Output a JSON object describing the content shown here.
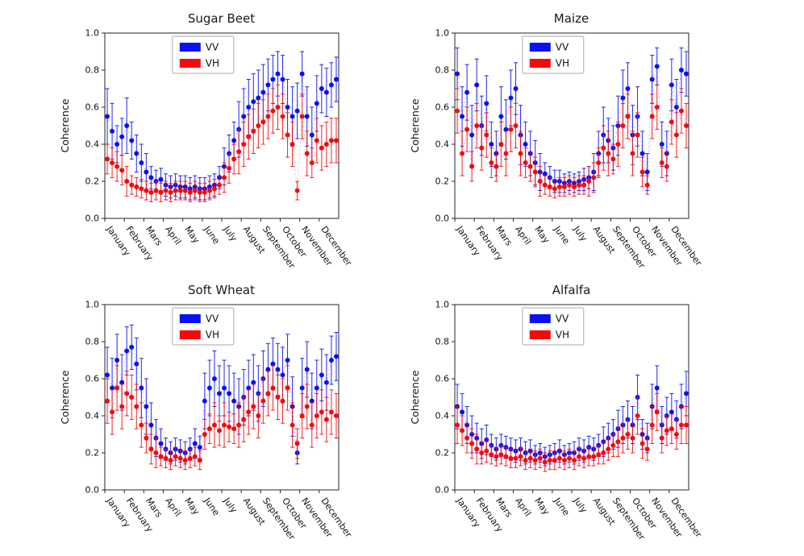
{
  "figure": {
    "background": "#ffffff",
    "axis_color": "#262626",
    "text_color": "#111111",
    "ylabel": "Coherence",
    "ylim": [
      0.0,
      1.0
    ],
    "ytick_labels": [
      "0.0",
      "0.2",
      "0.4",
      "0.6",
      "0.8",
      "1.0"
    ],
    "legend_entries": [
      "VV",
      "VH"
    ],
    "colors": {
      "VV": "#0a10f5",
      "VH": "#f50a0a"
    }
  },
  "chart_data": [
    {
      "type": "scatter",
      "title": "Sugar Beet",
      "xlabel": "",
      "ylabel": "Coherence",
      "ylim": [
        0.0,
        1.0
      ],
      "grid": false,
      "legend_position": "top-center",
      "points_per_month": 4,
      "months": [
        "January",
        "February",
        "Mars",
        "April",
        "May",
        "June",
        "July",
        "August",
        "September",
        "October",
        "November",
        "December"
      ],
      "series": [
        {
          "name": "VV",
          "color": "#0a10f5",
          "values": [
            0.55,
            0.47,
            0.4,
            0.44,
            0.5,
            0.42,
            0.35,
            0.3,
            0.25,
            0.22,
            0.2,
            0.21,
            0.18,
            0.17,
            0.18,
            0.17,
            0.17,
            0.16,
            0.17,
            0.16,
            0.16,
            0.17,
            0.18,
            0.22,
            0.28,
            0.35,
            0.42,
            0.48,
            0.55,
            0.6,
            0.63,
            0.65,
            0.68,
            0.72,
            0.75,
            0.78,
            0.75,
            0.6,
            0.55,
            0.58,
            0.78,
            0.55,
            0.45,
            0.62,
            0.7,
            0.68,
            0.72,
            0.75
          ],
          "errors": [
            0.15,
            0.15,
            0.1,
            0.1,
            0.15,
            0.1,
            0.1,
            0.1,
            0.1,
            0.06,
            0.06,
            0.06,
            0.06,
            0.06,
            0.06,
            0.06,
            0.06,
            0.06,
            0.06,
            0.06,
            0.06,
            0.06,
            0.06,
            0.06,
            0.1,
            0.1,
            0.1,
            0.15,
            0.15,
            0.15,
            0.15,
            0.15,
            0.15,
            0.14,
            0.13,
            0.12,
            0.13,
            0.15,
            0.16,
            0.15,
            0.12,
            0.16,
            0.15,
            0.15,
            0.13,
            0.13,
            0.12,
            0.12
          ]
        },
        {
          "name": "VH",
          "color": "#f50a0a",
          "values": [
            0.32,
            0.3,
            0.28,
            0.26,
            0.2,
            0.18,
            0.17,
            0.16,
            0.15,
            0.14,
            0.15,
            0.14,
            0.15,
            0.14,
            0.15,
            0.15,
            0.15,
            0.14,
            0.15,
            0.14,
            0.14,
            0.15,
            0.16,
            0.18,
            0.22,
            0.27,
            0.32,
            0.36,
            0.4,
            0.44,
            0.47,
            0.5,
            0.52,
            0.55,
            0.58,
            0.6,
            0.55,
            0.45,
            0.4,
            0.15,
            0.55,
            0.35,
            0.3,
            0.42,
            0.38,
            0.4,
            0.42,
            0.42
          ],
          "errors": [
            0.08,
            0.08,
            0.08,
            0.08,
            0.08,
            0.05,
            0.05,
            0.05,
            0.05,
            0.05,
            0.05,
            0.05,
            0.05,
            0.05,
            0.05,
            0.05,
            0.05,
            0.05,
            0.05,
            0.05,
            0.05,
            0.05,
            0.05,
            0.05,
            0.08,
            0.08,
            0.08,
            0.12,
            0.12,
            0.12,
            0.12,
            0.12,
            0.12,
            0.12,
            0.12,
            0.12,
            0.12,
            0.12,
            0.12,
            0.05,
            0.12,
            0.12,
            0.08,
            0.12,
            0.12,
            0.12,
            0.12,
            0.12
          ]
        }
      ]
    },
    {
      "type": "scatter",
      "title": "Maize",
      "xlabel": "",
      "ylabel": "Coherence",
      "ylim": [
        0.0,
        1.0
      ],
      "grid": false,
      "legend_position": "top-center",
      "points_per_month": 4,
      "months": [
        "January",
        "February",
        "Mars",
        "April",
        "May",
        "June",
        "July",
        "August",
        "September",
        "October",
        "November",
        "December"
      ],
      "series": [
        {
          "name": "VV",
          "color": "#0a10f5",
          "values": [
            0.78,
            0.55,
            0.68,
            0.45,
            0.72,
            0.5,
            0.62,
            0.4,
            0.35,
            0.55,
            0.48,
            0.65,
            0.7,
            0.45,
            0.4,
            0.35,
            0.3,
            0.25,
            0.24,
            0.22,
            0.2,
            0.2,
            0.19,
            0.2,
            0.19,
            0.2,
            0.21,
            0.22,
            0.25,
            0.35,
            0.45,
            0.42,
            0.38,
            0.5,
            0.65,
            0.7,
            0.45,
            0.55,
            0.35,
            0.25,
            0.75,
            0.82,
            0.4,
            0.35,
            0.72,
            0.6,
            0.8,
            0.78
          ],
          "errors": [
            0.14,
            0.16,
            0.15,
            0.16,
            0.14,
            0.16,
            0.15,
            0.12,
            0.12,
            0.16,
            0.16,
            0.15,
            0.14,
            0.16,
            0.12,
            0.12,
            0.12,
            0.1,
            0.06,
            0.06,
            0.06,
            0.06,
            0.05,
            0.05,
            0.05,
            0.05,
            0.06,
            0.06,
            0.1,
            0.12,
            0.15,
            0.12,
            0.12,
            0.16,
            0.15,
            0.14,
            0.16,
            0.16,
            0.12,
            0.1,
            0.13,
            0.1,
            0.12,
            0.12,
            0.14,
            0.15,
            0.12,
            0.12
          ]
        },
        {
          "name": "VH",
          "color": "#f50a0a",
          "values": [
            0.58,
            0.35,
            0.48,
            0.28,
            0.5,
            0.38,
            0.45,
            0.3,
            0.28,
            0.4,
            0.35,
            0.48,
            0.5,
            0.35,
            0.3,
            0.28,
            0.25,
            0.2,
            0.18,
            0.17,
            0.16,
            0.17,
            0.17,
            0.18,
            0.17,
            0.18,
            0.18,
            0.2,
            0.22,
            0.3,
            0.38,
            0.35,
            0.32,
            0.4,
            0.5,
            0.55,
            0.35,
            0.45,
            0.25,
            0.18,
            0.55,
            0.6,
            0.3,
            0.28,
            0.52,
            0.45,
            0.58,
            0.5
          ],
          "errors": [
            0.12,
            0.12,
            0.12,
            0.08,
            0.12,
            0.12,
            0.12,
            0.08,
            0.08,
            0.12,
            0.12,
            0.12,
            0.12,
            0.12,
            0.08,
            0.08,
            0.08,
            0.08,
            0.05,
            0.05,
            0.05,
            0.05,
            0.05,
            0.05,
            0.05,
            0.05,
            0.05,
            0.08,
            0.08,
            0.08,
            0.12,
            0.12,
            0.08,
            0.12,
            0.12,
            0.12,
            0.12,
            0.12,
            0.08,
            0.05,
            0.12,
            0.12,
            0.08,
            0.08,
            0.12,
            0.12,
            0.12,
            0.12
          ]
        }
      ]
    },
    {
      "type": "scatter",
      "title": "Soft Wheat",
      "xlabel": "",
      "ylabel": "Coherence",
      "ylim": [
        0.0,
        1.0
      ],
      "grid": false,
      "legend_position": "top-center",
      "points_per_month": 4,
      "months": [
        "January",
        "February",
        "Mars",
        "April",
        "May",
        "June",
        "July",
        "August",
        "September",
        "October",
        "November",
        "December"
      ],
      "series": [
        {
          "name": "VV",
          "color": "#0a10f5",
          "values": [
            0.62,
            0.55,
            0.7,
            0.58,
            0.75,
            0.77,
            0.68,
            0.55,
            0.45,
            0.35,
            0.28,
            0.25,
            0.22,
            0.2,
            0.22,
            0.21,
            0.2,
            0.22,
            0.25,
            0.23,
            0.48,
            0.55,
            0.6,
            0.52,
            0.55,
            0.52,
            0.48,
            0.45,
            0.5,
            0.55,
            0.58,
            0.52,
            0.6,
            0.65,
            0.68,
            0.65,
            0.62,
            0.7,
            0.45,
            0.2,
            0.55,
            0.65,
            0.48,
            0.55,
            0.62,
            0.58,
            0.7,
            0.72
          ],
          "errors": [
            0.15,
            0.16,
            0.14,
            0.15,
            0.13,
            0.12,
            0.14,
            0.16,
            0.15,
            0.12,
            0.1,
            0.08,
            0.06,
            0.06,
            0.06,
            0.06,
            0.06,
            0.06,
            0.08,
            0.06,
            0.15,
            0.15,
            0.15,
            0.15,
            0.15,
            0.15,
            0.15,
            0.15,
            0.15,
            0.15,
            0.15,
            0.15,
            0.15,
            0.14,
            0.14,
            0.14,
            0.15,
            0.14,
            0.16,
            0.06,
            0.16,
            0.15,
            0.15,
            0.15,
            0.14,
            0.15,
            0.13,
            0.13
          ]
        },
        {
          "name": "VH",
          "color": "#f50a0a",
          "values": [
            0.48,
            0.42,
            0.55,
            0.45,
            0.52,
            0.5,
            0.45,
            0.35,
            0.28,
            0.22,
            0.2,
            0.18,
            0.17,
            0.16,
            0.18,
            0.17,
            0.16,
            0.17,
            0.18,
            0.16,
            0.3,
            0.33,
            0.35,
            0.32,
            0.35,
            0.34,
            0.33,
            0.35,
            0.38,
            0.42,
            0.45,
            0.4,
            0.48,
            0.52,
            0.55,
            0.5,
            0.48,
            0.55,
            0.35,
            0.25,
            0.4,
            0.45,
            0.35,
            0.4,
            0.42,
            0.38,
            0.42,
            0.4
          ],
          "errors": [
            0.12,
            0.12,
            0.12,
            0.12,
            0.12,
            0.12,
            0.12,
            0.12,
            0.08,
            0.08,
            0.08,
            0.05,
            0.05,
            0.05,
            0.05,
            0.05,
            0.05,
            0.05,
            0.05,
            0.05,
            0.08,
            0.08,
            0.12,
            0.08,
            0.12,
            0.08,
            0.08,
            0.12,
            0.12,
            0.12,
            0.12,
            0.12,
            0.12,
            0.12,
            0.12,
            0.12,
            0.12,
            0.12,
            0.12,
            0.08,
            0.12,
            0.12,
            0.12,
            0.12,
            0.12,
            0.12,
            0.12,
            0.12
          ]
        }
      ]
    },
    {
      "type": "scatter",
      "title": "Alfalfa",
      "xlabel": "",
      "ylabel": "Coherence",
      "ylim": [
        0.0,
        1.0
      ],
      "grid": false,
      "legend_position": "top-center",
      "points_per_month": 4,
      "months": [
        "January",
        "February",
        "Mars",
        "April",
        "May",
        "June",
        "July",
        "August",
        "September",
        "October",
        "November",
        "December"
      ],
      "series": [
        {
          "name": "VV",
          "color": "#0a10f5",
          "values": [
            0.45,
            0.42,
            0.35,
            0.3,
            0.28,
            0.25,
            0.27,
            0.24,
            0.22,
            0.24,
            0.23,
            0.22,
            0.21,
            0.22,
            0.2,
            0.21,
            0.19,
            0.2,
            0.18,
            0.19,
            0.2,
            0.21,
            0.19,
            0.2,
            0.2,
            0.22,
            0.21,
            0.23,
            0.22,
            0.24,
            0.26,
            0.28,
            0.3,
            0.33,
            0.35,
            0.38,
            0.35,
            0.5,
            0.3,
            0.28,
            0.45,
            0.55,
            0.35,
            0.4,
            0.42,
            0.38,
            0.45,
            0.52
          ],
          "errors": [
            0.12,
            0.1,
            0.1,
            0.1,
            0.08,
            0.08,
            0.08,
            0.06,
            0.06,
            0.06,
            0.06,
            0.06,
            0.06,
            0.06,
            0.06,
            0.06,
            0.05,
            0.05,
            0.05,
            0.05,
            0.05,
            0.06,
            0.05,
            0.05,
            0.06,
            0.06,
            0.06,
            0.06,
            0.06,
            0.06,
            0.08,
            0.08,
            0.08,
            0.1,
            0.1,
            0.1,
            0.1,
            0.12,
            0.08,
            0.08,
            0.12,
            0.12,
            0.1,
            0.1,
            0.1,
            0.1,
            0.12,
            0.12
          ]
        },
        {
          "name": "VH",
          "color": "#f50a0a",
          "values": [
            0.35,
            0.32,
            0.28,
            0.25,
            0.22,
            0.2,
            0.21,
            0.19,
            0.18,
            0.19,
            0.18,
            0.17,
            0.17,
            0.18,
            0.16,
            0.17,
            0.16,
            0.17,
            0.15,
            0.16,
            0.16,
            0.17,
            0.16,
            0.17,
            0.16,
            0.18,
            0.17,
            0.18,
            0.18,
            0.19,
            0.2,
            0.22,
            0.24,
            0.26,
            0.28,
            0.3,
            0.28,
            0.4,
            0.25,
            0.22,
            0.35,
            0.42,
            0.28,
            0.32,
            0.33,
            0.3,
            0.35,
            0.35
          ],
          "errors": [
            0.1,
            0.08,
            0.08,
            0.08,
            0.08,
            0.06,
            0.06,
            0.05,
            0.05,
            0.05,
            0.05,
            0.05,
            0.05,
            0.05,
            0.05,
            0.05,
            0.05,
            0.05,
            0.05,
            0.05,
            0.05,
            0.05,
            0.05,
            0.05,
            0.05,
            0.05,
            0.05,
            0.05,
            0.05,
            0.05,
            0.06,
            0.06,
            0.06,
            0.08,
            0.08,
            0.08,
            0.08,
            0.1,
            0.08,
            0.06,
            0.1,
            0.1,
            0.08,
            0.08,
            0.08,
            0.08,
            0.1,
            0.1
          ]
        }
      ]
    }
  ]
}
